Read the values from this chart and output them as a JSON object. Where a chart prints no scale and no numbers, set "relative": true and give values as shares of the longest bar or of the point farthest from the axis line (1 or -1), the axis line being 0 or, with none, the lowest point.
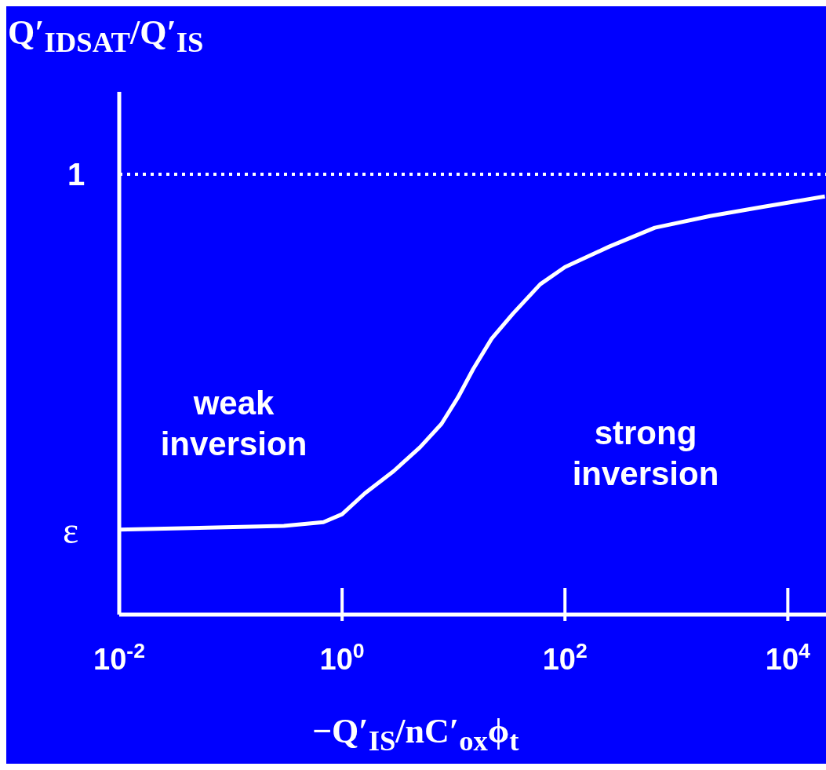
{
  "chart_data": {
    "type": "line",
    "relative": true,
    "log": "x",
    "ylabel": "Q′$_{IDSAT}$/Q′$_{IS}$",
    "xlabel": "−Q′$_{IS}$/nC′$_{ox}$ϕ$_{t}$",
    "x": [
      0.01,
      0.3,
      0.68,
      1,
      1.6,
      2.9,
      5,
      7.8,
      11,
      15,
      22,
      34,
      60,
      100,
      250,
      640,
      2000,
      6000,
      21500
    ],
    "series": [
      {
        "color": "#ffffff",
        "values": [
          0.203,
          0.212,
          0.221,
          0.24,
          0.29,
          0.343,
          0.4,
          0.456,
          0.52,
          0.587,
          0.66,
          0.719,
          0.79,
          0.831,
          0.88,
          0.925,
          0.953,
          0.975,
          1
        ]
      }
    ],
    "xlim": [
      0.01,
      22000
    ],
    "xticks": [
      {
        "value": 0.01,
        "label": "10$^{-2}$"
      },
      {
        "value": 1,
        "label": "10$^{0}$"
      },
      {
        "value": 100,
        "label": "10$^{2}$"
      },
      {
        "value": 10000,
        "label": "10$^{4}$"
      }
    ],
    "ref_lines": [
      {
        "axis": "y",
        "value": 1.053,
        "label": "1",
        "color": "#ffffff",
        "line_style": "dotted"
      }
    ],
    "annotations": [
      "ε",
      "weak inversion",
      "strong inversion"
    ],
    "grid": false,
    "legend": false,
    "marker": "none",
    "line_style": "solid"
  }
}
